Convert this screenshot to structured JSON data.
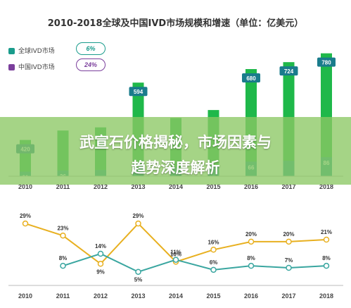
{
  "title": "2010-2018全球及中国IVD市场规模和增速（单位：亿美元）",
  "banner": {
    "line1": "武宣石价格揭秘，市场因素与",
    "line2": "趋势深度解析"
  },
  "legend": [
    {
      "label": "全球IVD市场",
      "color": "#1a9c8c",
      "pill": "6%"
    },
    {
      "label": "中国IVD市场",
      "color": "#7b3f9c",
      "pill": "24%"
    }
  ],
  "colors": {
    "global_bar": "#1fb84a",
    "china_bar": "#1a9c8c",
    "global_growth": "#e8b020",
    "china_growth": "#3aa6a0",
    "axis": "#bbbbbb",
    "label_box_dark": "#1a7c8c"
  },
  "chart_data": [
    {
      "type": "bar",
      "categories": [
        "2010",
        "2011",
        "2012",
        "2013",
        "2014",
        "2015",
        "2016",
        "2017",
        "2018"
      ],
      "series": [
        {
          "name": "全球IVD市场",
          "values": [
            420,
            null,
            null,
            594,
            null,
            null,
            680,
            724,
            780
          ],
          "labels": [
            "420",
            "",
            "",
            "594",
            "",
            "",
            "680",
            "724",
            "780"
          ]
        },
        {
          "name": "中国IVD市场",
          "values": [
            21,
            26,
            28,
            36,
            40,
            48,
            66,
            70,
            86
          ],
          "labels": [
            "21",
            "26",
            "",
            "",
            "",
            "",
            "66",
            "",
            "86"
          ]
        }
      ],
      "ylim": [
        0,
        850
      ]
    },
    {
      "type": "line",
      "categories": [
        "2010",
        "2011",
        "2012",
        "2013",
        "2014",
        "2015",
        "2016",
        "2017",
        "2018"
      ],
      "series": [
        {
          "name": "global_growth",
          "values": [
            29,
            23,
            9,
            29,
            10,
            16,
            20,
            20,
            21
          ],
          "labels": [
            "29%",
            "23%",
            "9%",
            "29%",
            "10%",
            "16%",
            "20%",
            "20%",
            "21%"
          ]
        },
        {
          "name": "china_growth",
          "values": [
            null,
            8,
            14,
            5,
            11,
            6,
            8,
            7,
            8
          ],
          "labels": [
            "",
            "8%",
            "14%",
            "5%",
            "11%",
            "6%",
            "8%",
            "7%",
            "8%"
          ]
        }
      ],
      "ylim": [
        0,
        35
      ]
    }
  ]
}
